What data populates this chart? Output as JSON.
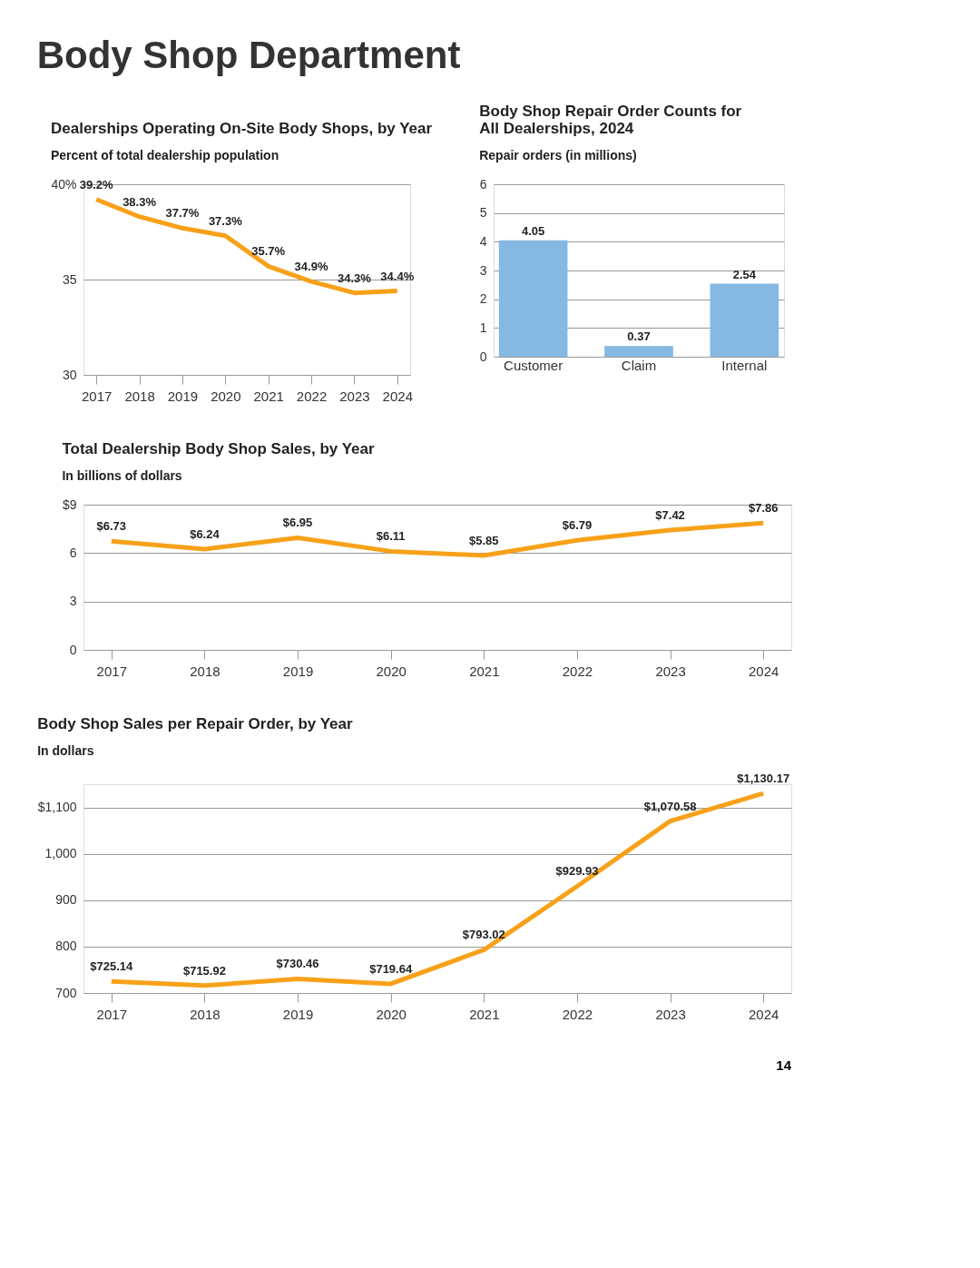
{
  "chart_data": [
    {
      "type": "line",
      "title": "Dealerships Operating On-Site Body Shops, by Year",
      "subtitle": "Percent of total dealership population",
      "annotations": [
        "Body Shop Department"
      ],
      "categories": [
        "2017",
        "2018",
        "2019",
        "2020",
        "2021",
        "2022",
        "2023",
        "2024"
      ],
      "values": [
        39.2,
        38.3,
        37.7,
        37.3,
        35.7,
        34.9,
        34.3,
        34.4
      ],
      "value_labels": [
        "39.2%",
        "38.3%",
        "37.7%",
        "37.3%",
        "35.7%",
        "34.9%",
        "34.3%",
        "34.4%"
      ],
      "color": "#f7a11a",
      "ylim": [
        30,
        40
      ],
      "yticks": [
        30,
        35,
        {
          "value": 40,
          "label": "40%"
        }
      ],
      "grid": "y",
      "marker": "none",
      "line_style": "solid"
    },
    {
      "type": "bar",
      "title": "Body Shop Repair Order Counts for\nAll Dealerships, 2024",
      "subtitle": "Repair orders (in millions)",
      "categories": [
        "Customer",
        "Claim",
        "Internal"
      ],
      "values": [
        4.05,
        0.37,
        2.54
      ],
      "color": "#85b9e3",
      "ylim": [
        0,
        6
      ],
      "yticks": [
        0,
        1,
        2,
        3,
        4,
        5,
        6
      ],
      "grid": "y",
      "data_labels": true
    },
    {
      "type": "line",
      "title": "Total Dealership Body Shop Sales, by Year",
      "subtitle": "In billions of dollars",
      "categories": [
        "2017",
        "2018",
        "2019",
        "2020",
        "2021",
        "2022",
        "2023",
        "2024"
      ],
      "values": [
        6.73,
        6.24,
        6.95,
        6.11,
        5.85,
        6.79,
        7.42,
        7.86
      ],
      "value_labels": [
        "$6.73",
        "$6.24",
        "$6.95",
        "$6.11",
        "$5.85",
        "$6.79",
        "$7.42",
        "$7.86"
      ],
      "color": "#f7a11a",
      "ylim": [
        0,
        9
      ],
      "yticks": [
        0,
        3,
        6,
        {
          "value": 9,
          "label": "$9"
        }
      ],
      "grid": "y",
      "marker": "none",
      "line_style": "solid"
    },
    {
      "type": "line",
      "title": "Body Shop Sales per Repair Order, by Year",
      "subtitle": "In dollars",
      "annotations": [
        "14"
      ],
      "categories": [
        "2017",
        "2018",
        "2019",
        "2020",
        "2021",
        "2022",
        "2023",
        "2024"
      ],
      "values": [
        725.14,
        715.92,
        730.46,
        719.64,
        793.02,
        929.93,
        1070.58,
        1130.17
      ],
      "value_labels": [
        "$725.14",
        "$715.92",
        "$730.46",
        "$719.64",
        "$793.02",
        "$929.93",
        "$1,070.58",
        "$1,130.17"
      ],
      "color": "#f7a11a",
      "ylim": [
        700,
        1150
      ],
      "yticks": [
        700,
        800,
        900,
        {
          "value": 1000,
          "label": "1,000"
        },
        {
          "value": 1100,
          "label": "$1,100"
        }
      ],
      "grid": "y",
      "marker": "none",
      "line_style": "solid"
    }
  ]
}
